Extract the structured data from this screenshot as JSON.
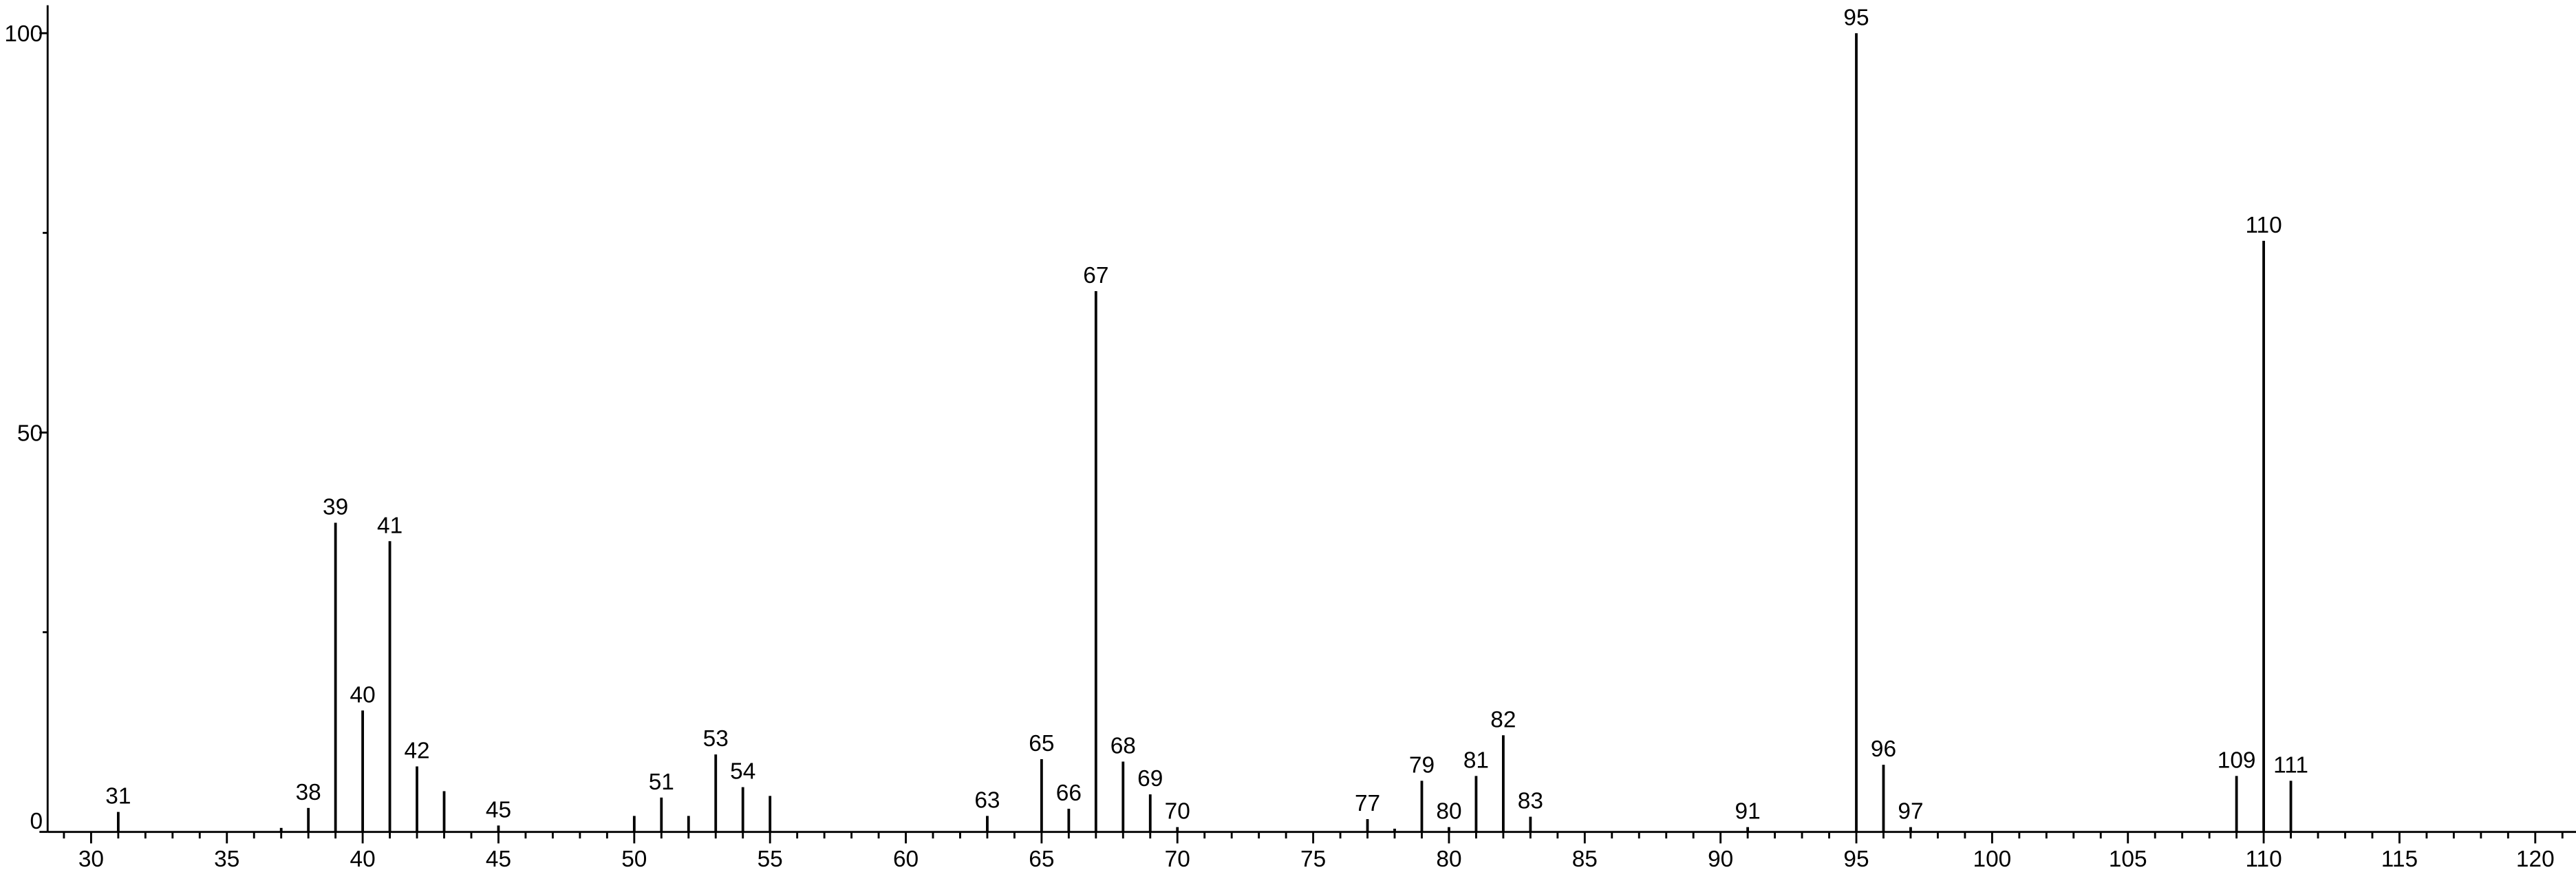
{
  "chart_data": {
    "type": "stem",
    "x": [
      31,
      37,
      38,
      39,
      40,
      41,
      42,
      43,
      45,
      50,
      51,
      52,
      53,
      54,
      55,
      63,
      65,
      66,
      67,
      68,
      69,
      70,
      77,
      78,
      79,
      80,
      81,
      82,
      83,
      91,
      95,
      96,
      97,
      109,
      110,
      111
    ],
    "values": [
      2.5,
      0.5,
      3,
      38.7,
      15.2,
      36.4,
      8.2,
      5.1,
      0.8,
      2,
      4.3,
      2,
      9.7,
      5.6,
      4.5,
      2,
      9.1,
      2.9,
      67.7,
      8.8,
      4.7,
      0.6,
      1.6,
      0.4,
      6.4,
      0.6,
      7,
      12.1,
      1.9,
      0.6,
      100,
      8.4,
      0.6,
      7,
      74,
      6.4
    ],
    "labels": [
      "31",
      null,
      "38",
      "39",
      "40",
      "41",
      "42",
      null,
      "45",
      null,
      "51",
      null,
      "53",
      "54",
      null,
      "63",
      "65",
      "66",
      "67",
      "68",
      "69",
      "70",
      "77",
      null,
      "79",
      "80",
      "81",
      "82",
      "83",
      "91",
      "95",
      "96",
      "97",
      "109",
      "110",
      "111"
    ],
    "color": "#000000",
    "xlim": [
      28.4,
      121.5
    ],
    "ylim": [
      0,
      103.5
    ],
    "xticks": [
      30,
      35,
      40,
      45,
      50,
      55,
      60,
      65,
      70,
      75,
      80,
      85,
      90,
      95,
      100,
      105,
      110,
      115,
      120
    ],
    "xminorticks": [
      29,
      31,
      32,
      33,
      34,
      36,
      37,
      38,
      39,
      41,
      42,
      43,
      44,
      46,
      47,
      48,
      49,
      51,
      52,
      53,
      54,
      56,
      57,
      58,
      59,
      61,
      62,
      63,
      64,
      66,
      67,
      68,
      69,
      71,
      72,
      73,
      74,
      76,
      77,
      78,
      79,
      81,
      82,
      83,
      84,
      86,
      87,
      88,
      89,
      91,
      92,
      93,
      94,
      96,
      97,
      98,
      99,
      101,
      102,
      103,
      104,
      106,
      107,
      108,
      109,
      111,
      112,
      113,
      114,
      116,
      117,
      118,
      119,
      121
    ],
    "yticks": [
      0,
      50,
      100
    ],
    "yminorticks": [
      25,
      75
    ]
  }
}
